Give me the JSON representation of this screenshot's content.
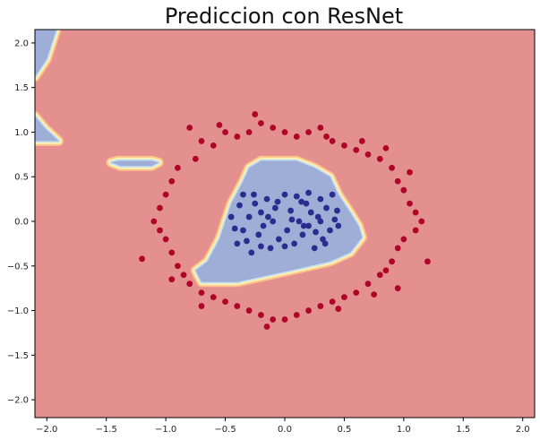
{
  "chart_data": {
    "type": "scatter",
    "title": "Prediccion con ResNet",
    "xlabel": "",
    "ylabel": "",
    "xlim": [
      -2.1,
      2.1
    ],
    "ylim": [
      -2.2,
      2.15
    ],
    "xticks": [
      -2.0,
      -1.5,
      -1.0,
      -0.5,
      0.0,
      0.5,
      1.0,
      1.5,
      2.0
    ],
    "xtick_labels": [
      "−2.0",
      "−1.5",
      "−1.0",
      "−0.5",
      "0.0",
      "0.5",
      "1.0",
      "1.5",
      "2.0"
    ],
    "yticks": [
      2.0,
      1.5,
      1.0,
      0.5,
      0.0,
      -0.5,
      -1.0,
      -1.5,
      -2.0
    ],
    "ytick_labels": [
      "2.0",
      "1.5",
      "1.0",
      "0.5",
      "0.0",
      "−0.5",
      "−1.0",
      "−1.5",
      "−2.0"
    ],
    "grid": false,
    "colors": {
      "background_region": "#e3908f",
      "inner_region": "#9eaed6",
      "class_0": "#2a2d8f",
      "class_1": "#b0052a",
      "contour_light_blue": "#c5def0",
      "contour_yellow": "#fff3b0",
      "contour_orange": "#fdc38a"
    },
    "regions": [
      {
        "label": "inner",
        "polygon": [
          [
            -0.45,
            0.2
          ],
          [
            -0.35,
            0.45
          ],
          [
            -0.3,
            0.6
          ],
          [
            -0.2,
            0.68
          ],
          [
            0.1,
            0.68
          ],
          [
            0.25,
            0.6
          ],
          [
            0.38,
            0.5
          ],
          [
            0.45,
            0.3
          ],
          [
            0.55,
            0.1
          ],
          [
            0.62,
            -0.05
          ],
          [
            0.65,
            -0.18
          ],
          [
            0.55,
            -0.35
          ],
          [
            0.38,
            -0.45
          ],
          [
            0.05,
            -0.55
          ],
          [
            -0.4,
            -0.68
          ],
          [
            -0.7,
            -0.68
          ],
          [
            -0.75,
            -0.55
          ],
          [
            -0.65,
            -0.45
          ],
          [
            -0.55,
            -0.2
          ]
        ]
      },
      {
        "label": "inner",
        "polygon": [
          [
            -2.1,
            2.15
          ],
          [
            -1.92,
            2.15
          ],
          [
            -2.0,
            1.82
          ],
          [
            -2.1,
            1.62
          ]
        ]
      },
      {
        "label": "inner",
        "polygon": [
          [
            -2.1,
            1.18
          ],
          [
            -2.02,
            1.05
          ],
          [
            -1.9,
            0.9
          ],
          [
            -2.1,
            0.9
          ]
        ]
      },
      {
        "label": "inner",
        "polygon": [
          [
            -1.46,
            0.66
          ],
          [
            -1.38,
            0.62
          ],
          [
            -1.12,
            0.62
          ],
          [
            -1.06,
            0.66
          ],
          [
            -1.12,
            0.68
          ],
          [
            -1.4,
            0.68
          ]
        ]
      }
    ],
    "series": [
      {
        "name": "",
        "class": 0,
        "points": [
          [
            -0.4,
            -0.25
          ],
          [
            -0.35,
            -0.1
          ],
          [
            -0.3,
            0.05
          ],
          [
            -0.28,
            -0.35
          ],
          [
            -0.25,
            0.2
          ],
          [
            -0.22,
            -0.15
          ],
          [
            -0.2,
            0.1
          ],
          [
            -0.18,
            -0.05
          ],
          [
            -0.15,
            0.25
          ],
          [
            -0.12,
            -0.3
          ],
          [
            -0.1,
            0.0
          ],
          [
            -0.08,
            0.15
          ],
          [
            -0.05,
            -0.2
          ],
          [
            0.0,
            0.3
          ],
          [
            0.02,
            -0.1
          ],
          [
            0.05,
            0.12
          ],
          [
            0.08,
            -0.25
          ],
          [
            0.1,
            0.28
          ],
          [
            0.12,
            0.0
          ],
          [
            0.15,
            -0.15
          ],
          [
            0.18,
            0.2
          ],
          [
            0.2,
            -0.05
          ],
          [
            0.22,
            0.1
          ],
          [
            0.25,
            -0.3
          ],
          [
            0.28,
            0.05
          ],
          [
            0.3,
            0.25
          ],
          [
            0.32,
            -0.2
          ],
          [
            0.35,
            0.15
          ],
          [
            0.38,
            -0.1
          ],
          [
            0.4,
            0.3
          ],
          [
            0.42,
            0.02
          ],
          [
            0.45,
            -0.05
          ],
          [
            -0.45,
            0.05
          ],
          [
            -0.38,
            0.18
          ],
          [
            -0.32,
            -0.22
          ],
          [
            -0.26,
            0.3
          ],
          [
            -0.2,
            -0.28
          ],
          [
            -0.14,
            0.05
          ],
          [
            -0.06,
            0.22
          ],
          [
            0.0,
            -0.28
          ],
          [
            0.06,
            0.02
          ],
          [
            0.14,
            0.22
          ],
          [
            0.2,
            0.32
          ],
          [
            0.26,
            -0.12
          ],
          [
            0.34,
            -0.25
          ],
          [
            0.44,
            0.12
          ],
          [
            -0.42,
            -0.08
          ],
          [
            -0.35,
            0.3
          ],
          [
            0.16,
            -0.05
          ],
          [
            0.3,
            0.0
          ]
        ]
      },
      {
        "name": "",
        "class": 1,
        "points": [
          [
            -0.8,
            1.05
          ],
          [
            -0.7,
            0.9
          ],
          [
            -0.6,
            0.85
          ],
          [
            -0.5,
            1.0
          ],
          [
            -0.4,
            0.95
          ],
          [
            -0.3,
            1.0
          ],
          [
            -0.2,
            1.1
          ],
          [
            -0.1,
            1.05
          ],
          [
            0.0,
            1.0
          ],
          [
            0.1,
            0.95
          ],
          [
            0.2,
            1.0
          ],
          [
            0.3,
            1.05
          ],
          [
            0.4,
            0.9
          ],
          [
            0.5,
            0.85
          ],
          [
            0.6,
            0.8
          ],
          [
            0.7,
            0.75
          ],
          [
            0.8,
            0.7
          ],
          [
            0.9,
            0.6
          ],
          [
            0.95,
            0.45
          ],
          [
            1.0,
            0.35
          ],
          [
            1.05,
            0.2
          ],
          [
            1.1,
            0.1
          ],
          [
            1.15,
            0.0
          ],
          [
            1.1,
            -0.1
          ],
          [
            1.0,
            -0.2
          ],
          [
            0.95,
            -0.3
          ],
          [
            0.9,
            -0.45
          ],
          [
            0.85,
            -0.55
          ],
          [
            0.8,
            -0.6
          ],
          [
            0.7,
            -0.7
          ],
          [
            0.6,
            -0.8
          ],
          [
            0.5,
            -0.85
          ],
          [
            0.4,
            -0.9
          ],
          [
            0.3,
            -0.95
          ],
          [
            0.2,
            -1.0
          ],
          [
            0.1,
            -1.05
          ],
          [
            0.0,
            -1.1
          ],
          [
            -0.1,
            -1.1
          ],
          [
            -0.2,
            -1.05
          ],
          [
            -0.3,
            -1.0
          ],
          [
            -0.4,
            -0.95
          ],
          [
            -0.5,
            -0.9
          ],
          [
            -0.6,
            -0.85
          ],
          [
            -0.7,
            -0.8
          ],
          [
            -0.8,
            -0.7
          ],
          [
            -0.85,
            -0.6
          ],
          [
            -0.9,
            -0.5
          ],
          [
            -0.95,
            -0.35
          ],
          [
            -1.0,
            -0.2
          ],
          [
            -1.05,
            -0.1
          ],
          [
            -1.1,
            0.0
          ],
          [
            -1.05,
            0.15
          ],
          [
            -1.0,
            0.3
          ],
          [
            -0.95,
            0.45
          ],
          [
            -0.9,
            0.6
          ],
          [
            -0.75,
            0.7
          ],
          [
            -1.2,
            -0.42
          ],
          [
            -0.95,
            -0.65
          ],
          [
            -0.7,
            -0.95
          ],
          [
            -0.15,
            -1.18
          ],
          [
            0.45,
            -0.98
          ],
          [
            0.75,
            -0.82
          ],
          [
            0.95,
            -0.75
          ],
          [
            1.2,
            -0.45
          ],
          [
            1.05,
            0.55
          ],
          [
            0.85,
            0.82
          ],
          [
            0.65,
            0.9
          ],
          [
            0.35,
            0.95
          ],
          [
            -0.25,
            1.2
          ],
          [
            -0.55,
            1.08
          ]
        ]
      }
    ]
  }
}
